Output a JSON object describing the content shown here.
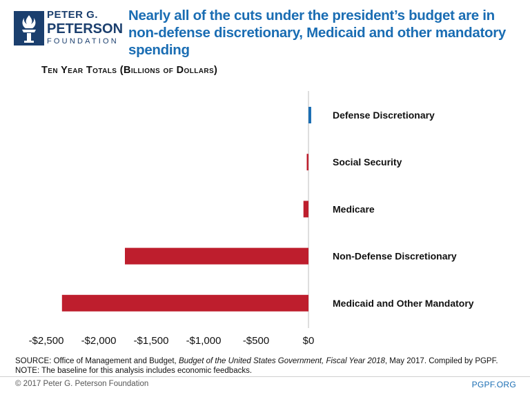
{
  "logo": {
    "line1": "PETER G.",
    "line2": "PETERSON",
    "line3": "FOUNDATION"
  },
  "header": {
    "title": "Nearly all of the cuts under the president’s budget are in non-defense discretionary, Medicaid and other mandatory spending"
  },
  "colors": {
    "positive": "#1a6db3",
    "negative": "#be1e2d",
    "brand_blue": "#1b3f6e"
  },
  "chart_data": {
    "type": "bar",
    "orientation": "horizontal",
    "title": "Ten Year Totals (Billions of Dollars)",
    "categories": [
      "Defense Discretionary",
      "Social Security",
      "Medicare",
      "Non-Defense Discretionary",
      "Medicaid and Other Mandatory"
    ],
    "values": [
      26,
      -8,
      -48,
      -1750,
      -2350
    ],
    "xlim": [
      -2500,
      0
    ],
    "xticks": [
      -2500,
      -2000,
      -1500,
      -1000,
      -500,
      0
    ],
    "xtick_labels": [
      "-$2,500",
      "-$2,000",
      "-$1,500",
      "-$1,000",
      "-$500",
      "$0"
    ],
    "xlabel": "",
    "ylabel": "",
    "grid": false
  },
  "footer": {
    "source_prefix": "SOURCE: Office of Management and Budget, ",
    "source_italic": "Budget of the United States Government, Fiscal Year 2018",
    "source_suffix": ", May 2017. Compiled by PGPF.",
    "note": "NOTE: The baseline for this analysis includes economic feedbacks.",
    "copyright": "© 2017 Peter G. Peterson Foundation",
    "site": "PGPF.ORG"
  }
}
